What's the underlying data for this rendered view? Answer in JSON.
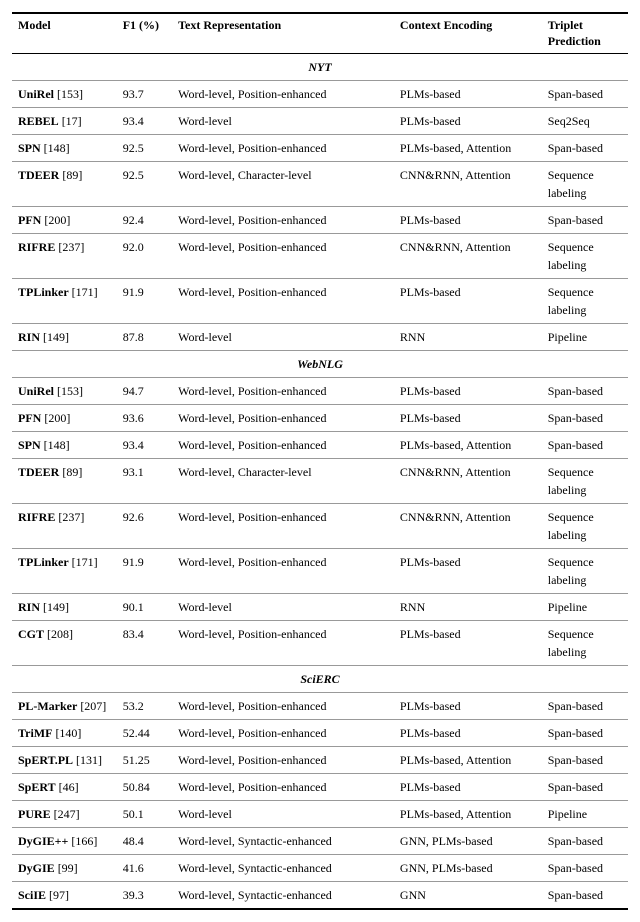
{
  "headers": {
    "model": "Model",
    "f1": "F1 (%)",
    "textrep": "Text Representation",
    "context": "Context Encoding",
    "triplet": "Triplet Prediction"
  },
  "sections": [
    {
      "name": "NYT",
      "rows": [
        {
          "model": "UniRel",
          "ref": "[153]",
          "f1": "93.7",
          "text": "Word-level, Position-enhanced",
          "ctx": "PLMs-based",
          "trip": "Span-based"
        },
        {
          "model": "REBEL",
          "ref": "[17]",
          "f1": "93.4",
          "text": "Word-level",
          "ctx": "PLMs-based",
          "trip": "Seq2Seq"
        },
        {
          "model": "SPN",
          "ref": "[148]",
          "f1": "92.5",
          "text": "Word-level, Position-enhanced",
          "ctx": "PLMs-based, Attention",
          "trip": "Span-based"
        },
        {
          "model": "TDEER",
          "ref": "[89]",
          "f1": "92.5",
          "text": "Word-level, Character-level",
          "ctx": "CNN&RNN, Attention",
          "trip": "Sequence labeling"
        },
        {
          "model": "PFN",
          "ref": "[200]",
          "f1": "92.4",
          "text": "Word-level, Position-enhanced",
          "ctx": "PLMs-based",
          "trip": "Span-based"
        },
        {
          "model": "RIFRE",
          "ref": "[237]",
          "f1": "92.0",
          "text": "Word-level, Position-enhanced",
          "ctx": "CNN&RNN, Attention",
          "trip": "Sequence labeling"
        },
        {
          "model": "TPLinker",
          "ref": "[171]",
          "f1": "91.9",
          "text": "Word-level, Position-enhanced",
          "ctx": "PLMs-based",
          "trip": "Sequence labeling"
        },
        {
          "model": "RIN",
          "ref": "[149]",
          "f1": "87.8",
          "text": "Word-level",
          "ctx": "RNN",
          "trip": "Pipeline"
        }
      ]
    },
    {
      "name": "WebNLG",
      "rows": [
        {
          "model": "UniRel",
          "ref": "[153]",
          "f1": "94.7",
          "text": "Word-level, Position-enhanced",
          "ctx": "PLMs-based",
          "trip": "Span-based"
        },
        {
          "model": "PFN",
          "ref": "[200]",
          "f1": "93.6",
          "text": "Word-level, Position-enhanced",
          "ctx": "PLMs-based",
          "trip": "Span-based"
        },
        {
          "model": "SPN",
          "ref": "[148]",
          "f1": "93.4",
          "text": "Word-level, Position-enhanced",
          "ctx": "PLMs-based, Attention",
          "trip": "Span-based"
        },
        {
          "model": "TDEER",
          "ref": "[89]",
          "f1": "93.1",
          "text": "Word-level, Character-level",
          "ctx": "CNN&RNN, Attention",
          "trip": "Sequence labeling"
        },
        {
          "model": "RIFRE",
          "ref": "[237]",
          "f1": "92.6",
          "text": "Word-level, Position-enhanced",
          "ctx": "CNN&RNN, Attention",
          "trip": "Sequence labeling"
        },
        {
          "model": "TPLinker",
          "ref": "[171]",
          "f1": "91.9",
          "text": "Word-level, Position-enhanced",
          "ctx": "PLMs-based",
          "trip": "Sequence labeling"
        },
        {
          "model": "RIN",
          "ref": "[149]",
          "f1": "90.1",
          "text": "Word-level",
          "ctx": "RNN",
          "trip": "Pipeline"
        },
        {
          "model": "CGT",
          "ref": "[208]",
          "f1": "83.4",
          "text": "Word-level, Position-enhanced",
          "ctx": "PLMs-based",
          "trip": "Sequence labeling"
        }
      ]
    },
    {
      "name": "SciERC",
      "rows": [
        {
          "model": "PL-Marker",
          "ref": "[207]",
          "f1": "53.2",
          "text": "Word-level, Position-enhanced",
          "ctx": "PLMs-based",
          "trip": "Span-based"
        },
        {
          "model": "TriMF",
          "ref": "[140]",
          "f1": "52.44",
          "text": "Word-level, Position-enhanced",
          "ctx": "PLMs-based",
          "trip": "Span-based"
        },
        {
          "model": "SpERT.PL",
          "ref": "[131]",
          "f1": "51.25",
          "text": "Word-level, Position-enhanced",
          "ctx": "PLMs-based, Attention",
          "trip": "Span-based"
        },
        {
          "model": "SpERT",
          "ref": "[46]",
          "f1": "50.84",
          "text": "Word-level, Position-enhanced",
          "ctx": "PLMs-based",
          "trip": "Span-based"
        },
        {
          "model": "PURE",
          "ref": "[247]",
          "f1": "50.1",
          "text": "Word-level",
          "ctx": "PLMs-based, Attention",
          "trip": "Pipeline"
        },
        {
          "model": "DyGIE++",
          "ref": "[166]",
          "f1": "48.4",
          "text": "Word-level, Syntactic-enhanced",
          "ctx": "GNN, PLMs-based",
          "trip": "Span-based"
        },
        {
          "model": "DyGIE",
          "ref": "[99]",
          "f1": "41.6",
          "text": "Word-level, Syntactic-enhanced",
          "ctx": "GNN, PLMs-based",
          "trip": "Span-based"
        },
        {
          "model": "SciIE",
          "ref": "[97]",
          "f1": "39.3",
          "text": "Word-level, Syntactic-enhanced",
          "ctx": "GNN",
          "trip": "Span-based"
        }
      ]
    }
  ]
}
